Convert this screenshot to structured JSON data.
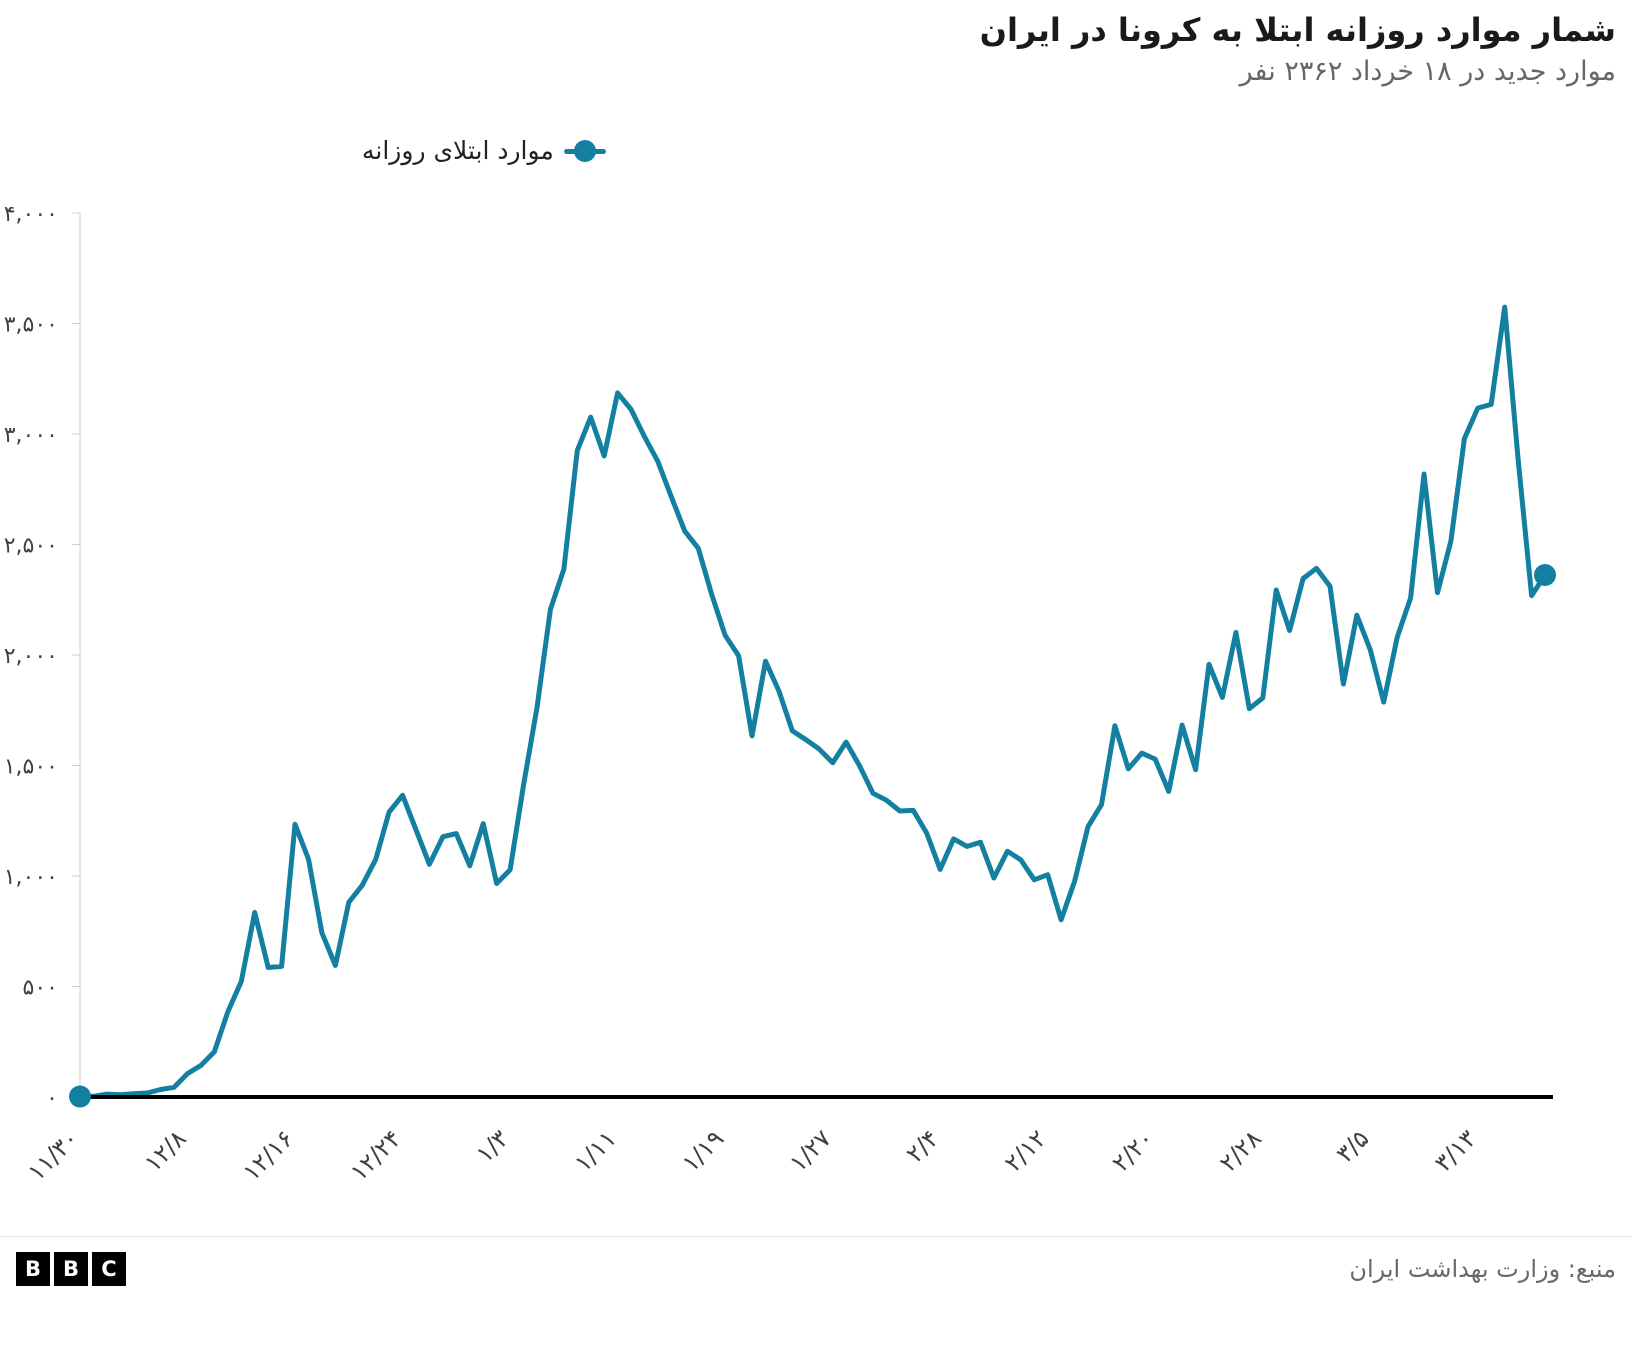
{
  "header": {
    "title": "شمار موارد روزانه ابتلا به کرونا در ایران",
    "subtitle": "موارد جدید در ۱۸ خرداد ۲۳۶۲ نفر"
  },
  "legend": {
    "label": "موارد ابتلای روزانه"
  },
  "footer": {
    "logo_letters": [
      "B",
      "B",
      "C"
    ],
    "source": "منبع: وزارت بهداشت ایران"
  },
  "chart_data": {
    "type": "line",
    "title": "شمار موارد روزانه ابتلا به کرونا در ایران",
    "subtitle": "موارد جدید در ۱۸ خرداد ۲۳۶۲ نفر",
    "legend_label": "موارد ابتلای روزانه",
    "source": "منبع: وزارت بهداشت ایران",
    "xlabel": "",
    "ylabel": "",
    "grid": false,
    "legend_position": "top",
    "markers": "first-last",
    "colors": {
      "line": "#1380A1",
      "baseline": "#000000",
      "axis": "#cccccc",
      "tick_text": "#404040"
    },
    "ylim": [
      0,
      4000
    ],
    "ytick_values": [
      0,
      500,
      1000,
      1500,
      2000,
      2500,
      3000,
      3500,
      4000
    ],
    "ytick_labels": [
      "۰",
      "۵۰۰",
      "۱,۰۰۰",
      "۱,۵۰۰",
      "۲,۰۰۰",
      "۲,۵۰۰",
      "۳,۰۰۰",
      "۳,۵۰۰",
      "۴,۰۰۰"
    ],
    "xtick_day_indices": [
      0,
      8,
      16,
      24,
      32,
      40,
      48,
      56,
      64,
      72,
      80,
      88,
      96,
      104
    ],
    "xtick_labels": [
      "۱۱/۳۰",
      "۱۲/۸",
      "۱۲/۱۶",
      "۱۲/۲۴",
      "۱/۳",
      "۱/۱۱",
      "۱/۱۹",
      "۱/۲۷",
      "۲/۴",
      "۲/۱۲",
      "۲/۲۰",
      "۲/۲۸",
      "۳/۵",
      "۳/۱۳"
    ],
    "values": [
      2,
      3,
      13,
      10,
      15,
      18,
      34,
      44,
      106,
      143,
      205,
      385,
      523,
      835,
      586,
      591,
      1234,
      1076,
      743,
      595,
      881,
      958,
      1075,
      1289,
      1365,
      1209,
      1053,
      1178,
      1192,
      1046,
      1237,
      966,
      1028,
      1411,
      1762,
      2206,
      2389,
      2926,
      3076,
      2901,
      3186,
      3111,
      2988,
      2875,
      2715,
      2560,
      2483,
      2274,
      2089,
      1997,
      1634,
      1972,
      1837,
      1657,
      1617,
      1574,
      1512,
      1606,
      1499,
      1374,
      1343,
      1294,
      1297,
      1194,
      1030,
      1168,
      1134,
      1153,
      991,
      1112,
      1073,
      983,
      1006,
      802,
      976,
      1223,
      1323,
      1680,
      1485,
      1556,
      1529,
      1383,
      1683,
      1481,
      1958,
      1808,
      2102,
      1757,
      1806,
      2294,
      2111,
      2346,
      2392,
      2311,
      1869,
      2180,
      2023,
      1787,
      2080,
      2258,
      2819,
      2282,
      2516,
      2979,
      3117,
      3134,
      3574,
      2886,
      2269,
      2362
    ]
  }
}
